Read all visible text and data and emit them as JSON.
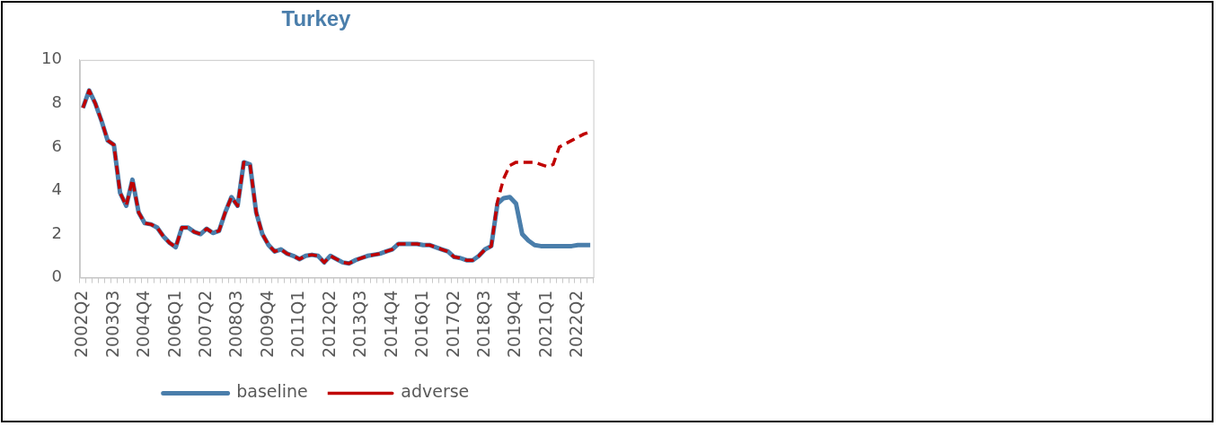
{
  "chart_data": {
    "type": "line",
    "title": "Turkey",
    "categories": [
      "2002Q2",
      null,
      null,
      null,
      null,
      "2003Q3",
      null,
      null,
      null,
      null,
      "2004Q4",
      null,
      null,
      null,
      null,
      "2006Q1",
      null,
      null,
      null,
      null,
      "2007Q2",
      null,
      null,
      null,
      null,
      "2008Q3",
      null,
      null,
      null,
      null,
      "2009Q4",
      null,
      null,
      null,
      null,
      "2011Q1",
      null,
      null,
      null,
      null,
      "2012Q2",
      null,
      null,
      null,
      null,
      "2013Q3",
      null,
      null,
      null,
      null,
      "2014Q4",
      null,
      null,
      null,
      null,
      "2016Q1",
      null,
      null,
      null,
      null,
      "2017Q2",
      null,
      null,
      null,
      null,
      "2018Q3",
      null,
      null,
      null,
      null,
      "2019Q4",
      null,
      null,
      null,
      null,
      "2021Q1",
      null,
      null,
      null,
      null,
      "2022Q2",
      null,
      null
    ],
    "series": [
      {
        "name": "baseline",
        "color": "#4a7eab",
        "line_style": "solid",
        "values": [
          7.8,
          8.6,
          8.0,
          7.2,
          6.3,
          6.1,
          3.9,
          3.3,
          4.5,
          3.0,
          2.5,
          2.45,
          2.3,
          1.9,
          1.6,
          1.4,
          2.3,
          2.3,
          2.1,
          2.0,
          2.25,
          2.05,
          2.15,
          3.0,
          3.7,
          3.3,
          5.3,
          5.2,
          3.0,
          2.0,
          1.5,
          1.2,
          1.3,
          1.1,
          1.0,
          0.85,
          1.0,
          1.05,
          1.0,
          0.7,
          1.0,
          0.85,
          0.7,
          0.65,
          0.8,
          0.9,
          1.0,
          1.05,
          1.1,
          1.2,
          1.3,
          1.55,
          1.55,
          1.55,
          1.55,
          1.5,
          1.5,
          1.4,
          1.3,
          1.2,
          0.95,
          0.9,
          0.8,
          0.8,
          1.0,
          1.3,
          1.45,
          3.4,
          3.65,
          3.7,
          3.4,
          2.0,
          1.7,
          1.5,
          1.45,
          1.45,
          1.45,
          1.45,
          1.45,
          1.45,
          1.5,
          1.5,
          1.5
        ]
      },
      {
        "name": "adverse",
        "color": "#c00000",
        "line_style": "dashed",
        "values": [
          7.8,
          8.6,
          8.0,
          7.2,
          6.3,
          6.1,
          3.9,
          3.3,
          4.5,
          3.0,
          2.5,
          2.45,
          2.3,
          1.9,
          1.6,
          1.4,
          2.3,
          2.3,
          2.1,
          2.0,
          2.25,
          2.05,
          2.15,
          3.0,
          3.7,
          3.3,
          5.3,
          5.2,
          3.0,
          2.0,
          1.5,
          1.2,
          1.3,
          1.1,
          1.0,
          0.85,
          1.0,
          1.05,
          1.0,
          0.7,
          1.0,
          0.85,
          0.7,
          0.65,
          0.8,
          0.9,
          1.0,
          1.05,
          1.1,
          1.2,
          1.3,
          1.55,
          1.55,
          1.55,
          1.55,
          1.5,
          1.5,
          1.4,
          1.3,
          1.2,
          0.95,
          0.9,
          0.8,
          0.8,
          1.0,
          1.3,
          1.45,
          3.5,
          4.55,
          5.15,
          5.3,
          5.3,
          5.3,
          5.3,
          5.2,
          5.1,
          5.2,
          6.0,
          6.15,
          6.3,
          6.45,
          6.6,
          6.7
        ]
      }
    ],
    "ylim": [
      0,
      10
    ],
    "yticks": [
      0,
      2,
      4,
      6,
      8,
      10
    ],
    "legend": "bottom",
    "marker": "none"
  }
}
